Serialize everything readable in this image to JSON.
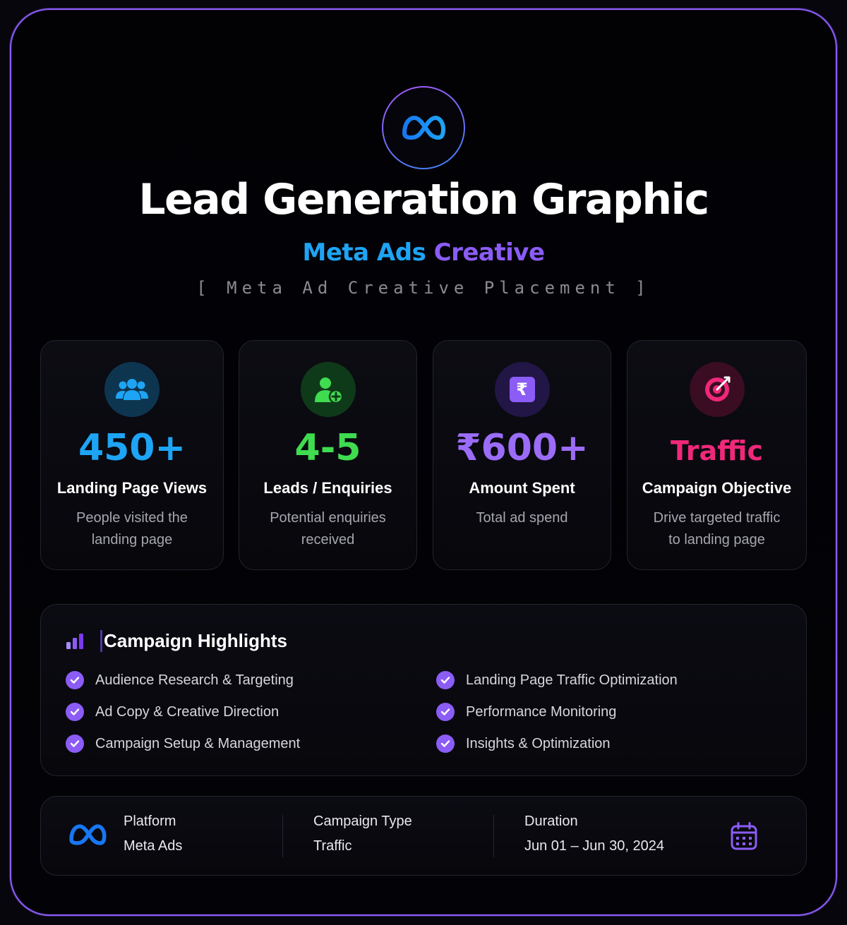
{
  "header": {
    "logo_icon": "meta-infinity-icon",
    "title": "Lead Generation Graphic",
    "subtitle_part1": "Meta Ads",
    "subtitle_part2": "Creative",
    "tagline": "[ Meta Ad Creative Placement ]"
  },
  "stats": [
    {
      "icon": "users-icon",
      "value": "450+",
      "label": "Landing Page Views",
      "desc": "People visited the landing page",
      "color": "#1ea4f5"
    },
    {
      "icon": "user-plus-icon",
      "value": "4-5",
      "label": "Leads / Enquiries",
      "desc": "Potential enquiries received",
      "color": "#3fdc4f"
    },
    {
      "icon": "rupee-icon",
      "value": "₹600+",
      "label": "Amount Spent",
      "desc": "Total ad spend",
      "color": "#9b6cf7"
    },
    {
      "icon": "target-icon",
      "value": "Traffic",
      "label": "Campaign Objective",
      "desc": "Drive targeted traffic to landing page",
      "color": "#f0287a"
    }
  ],
  "highlights": {
    "icon": "bar-chart-icon",
    "title": "Campaign Highlights",
    "items": [
      "Audience Research & Targeting",
      "Ad Copy & Creative Direction",
      "Campaign Setup & Management",
      "Landing Page Traffic Optimization",
      "Performance Monitoring",
      "Insights & Optimization"
    ]
  },
  "footer": {
    "platform_icon": "meta-infinity-icon",
    "platform_label": "Platform",
    "platform_value": "Meta Ads",
    "type_label": "Campaign Type",
    "type_value": "Traffic",
    "duration_label": "Duration",
    "duration_value": "Jun 01 – Jun 30, 2024",
    "calendar_icon": "calendar-icon"
  },
  "colors": {
    "accent_purple": "#8b5cf6",
    "accent_blue": "#1ea4f5",
    "accent_green": "#3fdc4f",
    "accent_pink": "#f0287a"
  }
}
